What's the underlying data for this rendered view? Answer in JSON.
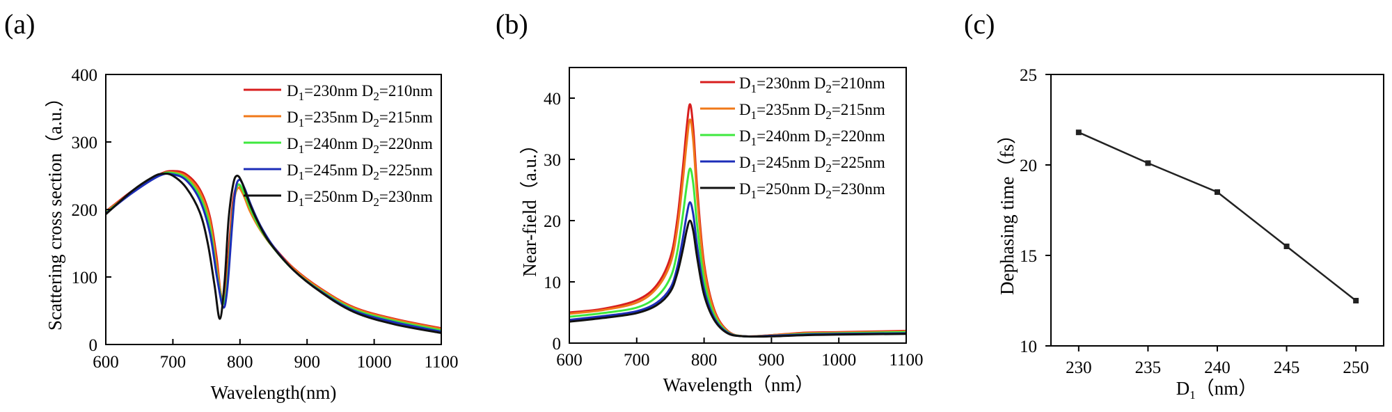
{
  "colors": {
    "d230": "#d81e1e",
    "d235": "#f07819",
    "d240": "#3ee83e",
    "d245": "#1c2db8",
    "d250": "#111111",
    "series_c": "#222222"
  },
  "chart_data": [
    {
      "id": "a",
      "panel_label": "(a)",
      "type": "line",
      "xlabel": "Wavelength(nm)",
      "ylabel": "Scattering cross section（a.u.）",
      "xlim": [
        600,
        1100
      ],
      "ylim": [
        0,
        400
      ],
      "xticks": [
        600,
        700,
        800,
        900,
        1000,
        1100
      ],
      "yticks": [
        0,
        100,
        200,
        300,
        400
      ],
      "legend_position": "top-right",
      "series": [
        {
          "key": "d230",
          "D1": "1",
          "v1": "=230nm D",
          "D2": "2",
          "v2": "=210nm",
          "x": [
            600,
            640,
            680,
            700,
            720,
            740,
            755,
            765,
            772,
            778,
            785,
            790,
            797,
            805,
            815,
            830,
            850,
            880,
            920,
            970,
            1030,
            1100
          ],
          "y": [
            197,
            228,
            252,
            257,
            252,
            230,
            190,
            130,
            72,
            78,
            160,
            215,
            237,
            225,
            200,
            172,
            145,
            113,
            83,
            55,
            38,
            24
          ]
        },
        {
          "key": "d235",
          "D1": "1",
          "v1": "=235nm D",
          "D2": "2",
          "v2": "=215nm",
          "x": [
            600,
            640,
            680,
            700,
            720,
            740,
            755,
            765,
            773,
            779,
            786,
            791,
            797,
            805,
            815,
            830,
            850,
            880,
            920,
            970,
            1030,
            1100
          ],
          "y": [
            196,
            227,
            251,
            255,
            249,
            226,
            184,
            120,
            68,
            76,
            158,
            212,
            232,
            222,
            197,
            170,
            143,
            112,
            82,
            54,
            37,
            23
          ]
        },
        {
          "key": "d240",
          "D1": "1",
          "v1": "=240nm D",
          "D2": "2",
          "v2": "=220nm",
          "x": [
            600,
            640,
            680,
            700,
            720,
            740,
            755,
            765,
            774,
            780,
            787,
            792,
            798,
            806,
            816,
            830,
            850,
            880,
            920,
            970,
            1030,
            1100
          ],
          "y": [
            195,
            226,
            251,
            254,
            246,
            220,
            175,
            108,
            62,
            80,
            165,
            220,
            237,
            225,
            200,
            172,
            143,
            110,
            80,
            52,
            35,
            21
          ]
        },
        {
          "key": "d245",
          "D1": "1",
          "v1": "=245nm D",
          "D2": "2",
          "v2": "=225nm",
          "x": [
            600,
            640,
            680,
            700,
            720,
            740,
            755,
            766,
            775,
            781,
            788,
            793,
            799,
            807,
            817,
            831,
            850,
            880,
            920,
            970,
            1030,
            1100
          ],
          "y": [
            194,
            225,
            250,
            252,
            243,
            214,
            166,
            98,
            55,
            82,
            172,
            228,
            244,
            231,
            205,
            175,
            145,
            110,
            79,
            50,
            33,
            19
          ]
        },
        {
          "key": "d250",
          "D1": "1",
          "v1": "=250nm D",
          "D2": "2",
          "v2": "=230nm",
          "x": [
            600,
            640,
            670,
            685,
            700,
            720,
            740,
            752,
            762,
            770,
            777,
            783,
            790,
            796,
            803,
            812,
            825,
            845,
            880,
            920,
            970,
            1030,
            1100
          ],
          "y": [
            193,
            228,
            248,
            253,
            250,
            232,
            196,
            150,
            88,
            38,
            92,
            185,
            238,
            250,
            240,
            215,
            185,
            150,
            110,
            78,
            48,
            30,
            17
          ]
        }
      ]
    },
    {
      "id": "b",
      "panel_label": "(b)",
      "type": "line",
      "xlabel": "Wavelength（nm）",
      "ylabel": "Near-field（a.u.）",
      "xlim": [
        600,
        1100
      ],
      "ylim": [
        0,
        45
      ],
      "xticks": [
        600,
        700,
        800,
        900,
        1000,
        1100
      ],
      "yticks": [
        0,
        10,
        20,
        30,
        40
      ],
      "legend_position": "top-right",
      "series": [
        {
          "key": "d230",
          "D1": "1",
          "v1": "=230nm D",
          "D2": "2",
          "v2": "=210nm",
          "x": [
            600,
            650,
            700,
            730,
            750,
            760,
            768,
            774,
            779,
            784,
            790,
            800,
            815,
            835,
            860,
            900,
            950,
            1000,
            1100
          ],
          "y": [
            5,
            5.6,
            7,
            9.5,
            14,
            20,
            28,
            35,
            39,
            35,
            25,
            13,
            5.5,
            2,
            1.1,
            1.3,
            1.7,
            1.8,
            2
          ]
        },
        {
          "key": "d235",
          "D1": "1",
          "v1": "=235nm D",
          "D2": "2",
          "v2": "=215nm",
          "x": [
            600,
            650,
            700,
            730,
            750,
            760,
            768,
            774,
            779,
            784,
            790,
            800,
            815,
            835,
            860,
            900,
            950,
            1000,
            1100
          ],
          "y": [
            4.8,
            5.4,
            6.6,
            9,
            13,
            18.5,
            26,
            32.5,
            36.5,
            33,
            23.5,
            12.3,
            5.2,
            1.9,
            1.1,
            1.3,
            1.6,
            1.7,
            1.9
          ]
        },
        {
          "key": "d240",
          "D1": "1",
          "v1": "=240nm D",
          "D2": "2",
          "v2": "=220nm",
          "x": [
            600,
            650,
            700,
            730,
            750,
            760,
            768,
            774,
            779,
            784,
            790,
            800,
            815,
            835,
            860,
            900,
            950,
            1000,
            1100
          ],
          "y": [
            4.3,
            4.9,
            5.8,
            7.6,
            10.7,
            14.8,
            20.5,
            25.5,
            28.5,
            26,
            19,
            10.3,
            4.6,
            1.8,
            1.1,
            1.2,
            1.5,
            1.6,
            1.8
          ]
        },
        {
          "key": "d245",
          "D1": "1",
          "v1": "=245nm D",
          "D2": "2",
          "v2": "=225nm",
          "x": [
            600,
            650,
            700,
            730,
            750,
            760,
            768,
            774,
            779,
            784,
            790,
            800,
            815,
            835,
            860,
            900,
            950,
            1000,
            1100
          ],
          "y": [
            3.8,
            4.4,
            5.2,
            6.6,
            9,
            12.3,
            16.8,
            20.8,
            23,
            21,
            15.6,
            8.8,
            4.1,
            1.7,
            1.1,
            1.2,
            1.4,
            1.5,
            1.6
          ]
        },
        {
          "key": "d250",
          "D1": "1",
          "v1": "=250nm D",
          "D2": "2",
          "v2": "=230nm",
          "x": [
            600,
            650,
            700,
            730,
            750,
            760,
            768,
            774,
            779,
            784,
            790,
            800,
            815,
            835,
            860,
            900,
            950,
            1000,
            1100
          ],
          "y": [
            3.5,
            4.1,
            4.9,
            6.2,
            8.4,
            11.3,
            15,
            18.3,
            20,
            18.3,
            13.8,
            7.9,
            3.8,
            1.6,
            1.1,
            1.1,
            1.3,
            1.4,
            1.5
          ]
        }
      ]
    },
    {
      "id": "c",
      "panel_label": "(c)",
      "type": "line",
      "xlabel_main": "D",
      "xlabel_sub": "1",
      "xlabel_rest": "（nm）",
      "ylabel": "Dephasing time（fs）",
      "xlim": [
        228,
        252
      ],
      "ylim": [
        10,
        25
      ],
      "xticks": [
        230,
        235,
        240,
        245,
        250
      ],
      "yticks": [
        10,
        15,
        20,
        25
      ],
      "series": [
        {
          "name": "Dephasing time",
          "key": "series_c",
          "x": [
            230,
            235,
            240,
            245,
            250
          ],
          "y": [
            21.8,
            20.1,
            18.5,
            15.5,
            12.5
          ]
        }
      ]
    }
  ]
}
